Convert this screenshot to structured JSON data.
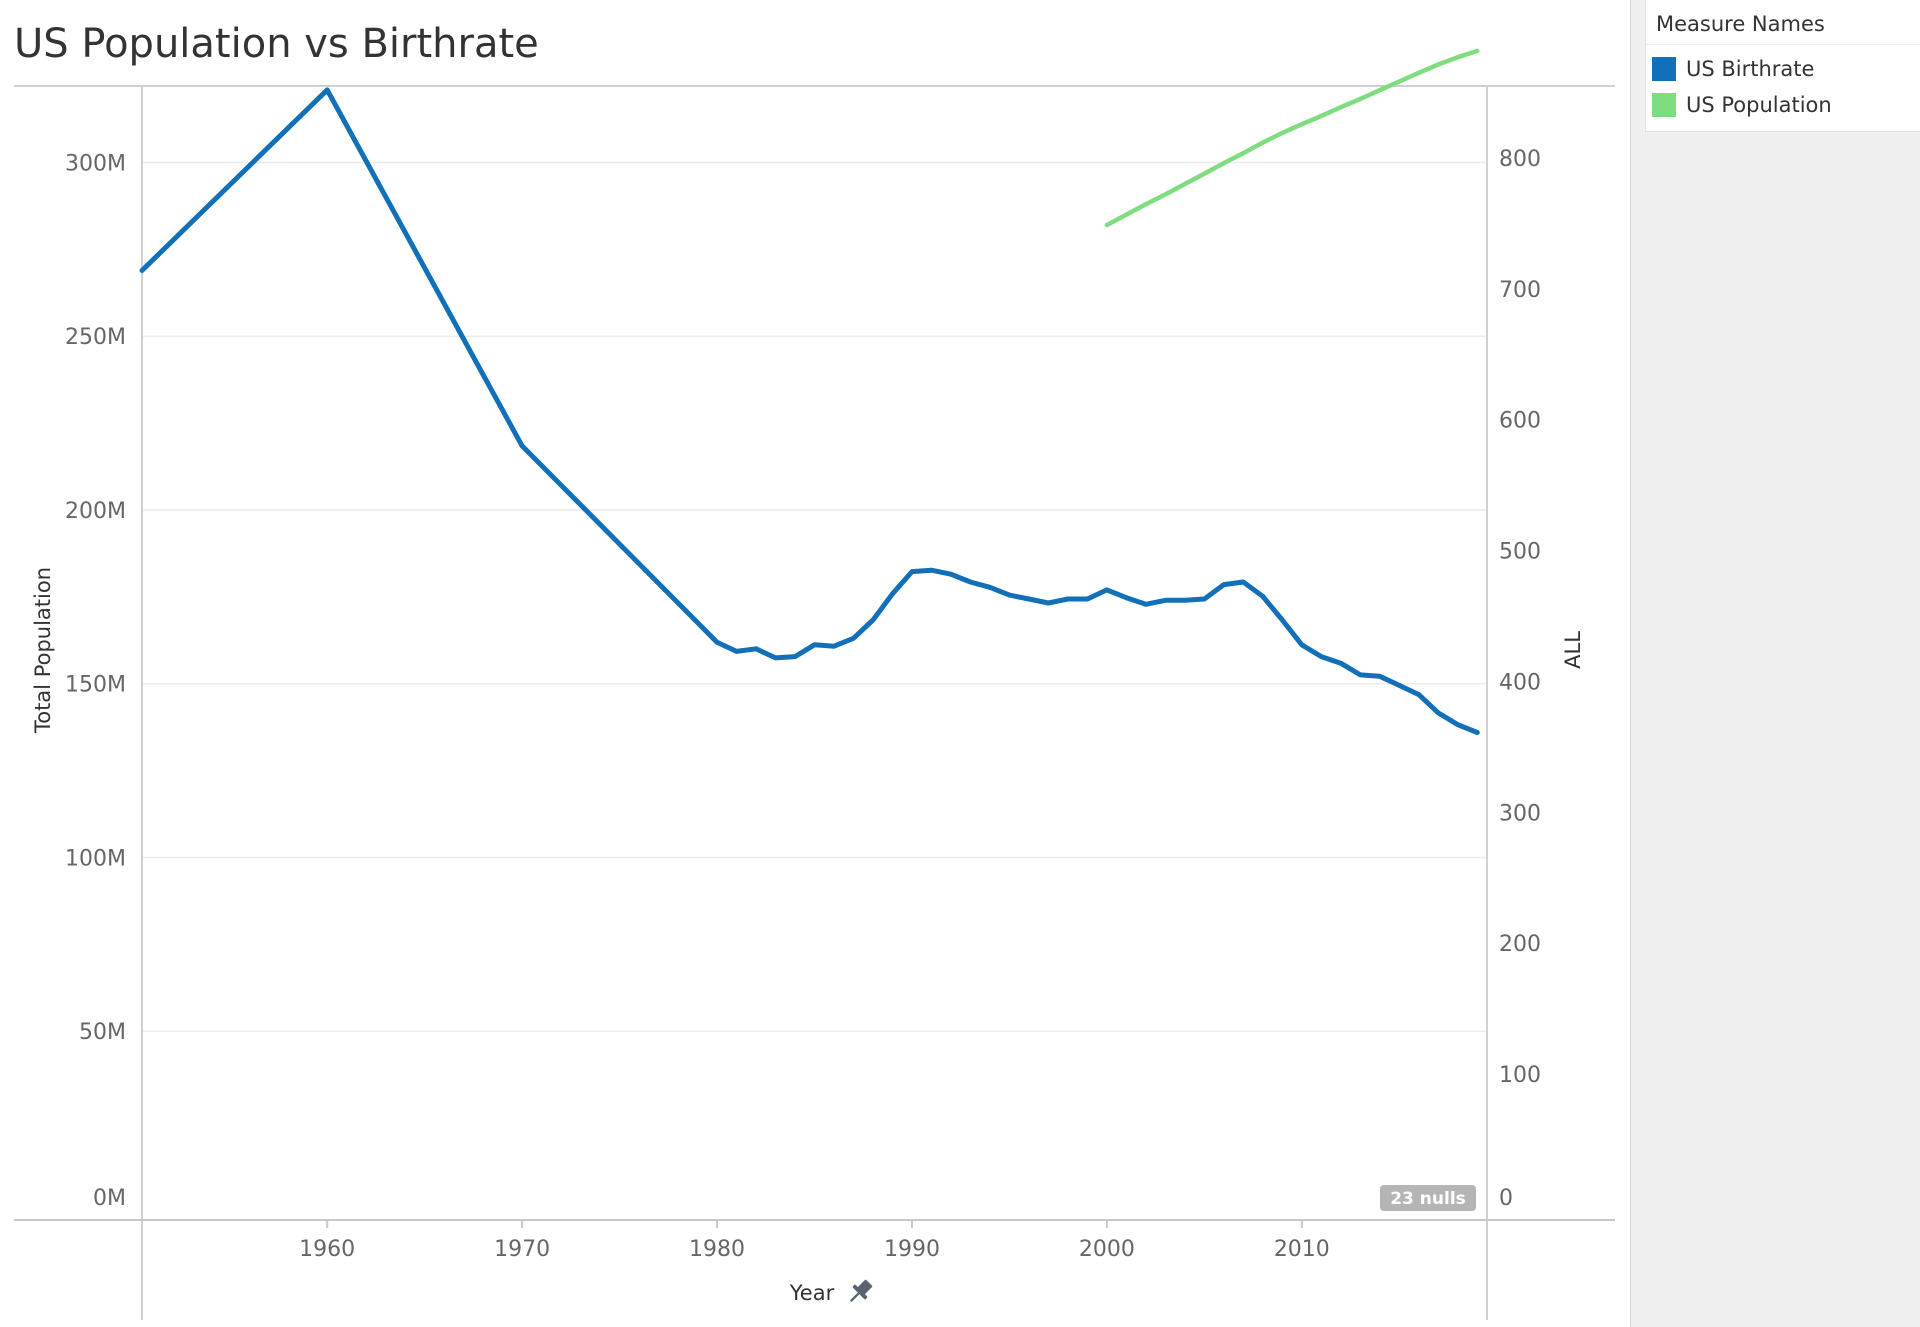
{
  "legend": {
    "title": "Measure Names",
    "items": [
      {
        "label": "US Birthrate",
        "color": "#1170b8"
      },
      {
        "label": "US Population",
        "color": "#7fdd7f"
      }
    ]
  },
  "null_indicator": "23 nulls",
  "chart_data": {
    "type": "line",
    "title": "US Population vs Birthrate",
    "xlabel": "Year",
    "ylabel": "Total Population",
    "y2label": "ALL",
    "xlim": [
      1950.5,
      2019.5
    ],
    "ylim": [
      0,
      322000000
    ],
    "y2lim": [
      0,
      855
    ],
    "x_ticks": [
      1960,
      1970,
      1980,
      1990,
      2000,
      2010
    ],
    "y_ticks": [
      {
        "value": 0,
        "label": "0M"
      },
      {
        "value": 50000000,
        "label": "50M"
      },
      {
        "value": 100000000,
        "label": "100M"
      },
      {
        "value": 150000000,
        "label": "150M"
      },
      {
        "value": 200000000,
        "label": "200M"
      },
      {
        "value": 250000000,
        "label": "250M"
      },
      {
        "value": 300000000,
        "label": "300M"
      }
    ],
    "y2_ticks": [
      {
        "value": 0,
        "label": "0"
      },
      {
        "value": 100,
        "label": "100"
      },
      {
        "value": 200,
        "label": "200"
      },
      {
        "value": 300,
        "label": "300"
      },
      {
        "value": 400,
        "label": "400"
      },
      {
        "value": 500,
        "label": "500"
      },
      {
        "value": 600,
        "label": "600"
      },
      {
        "value": 700,
        "label": "700"
      },
      {
        "value": 800,
        "label": "800"
      }
    ],
    "grid": true,
    "legend_position": "right",
    "series": [
      {
        "name": "US Birthrate",
        "axis": "right",
        "color": "#1170b8",
        "x": [
          1950.5,
          1960,
          1970,
          1980,
          1981,
          1982,
          1983,
          1984,
          1985,
          1986,
          1987,
          1988,
          1989,
          1990,
          1991,
          1992,
          1993,
          1994,
          1995,
          1996,
          1997,
          1998,
          1999,
          2000,
          2001,
          2002,
          2003,
          2004,
          2005,
          2006,
          2007,
          2008,
          2009,
          2010,
          2011,
          2012,
          2013,
          2014,
          2015,
          2016,
          2017,
          2018,
          2019
        ],
        "values": [
          714,
          852,
          580,
          430,
          423,
          425,
          418,
          419,
          428,
          427,
          433,
          447,
          467,
          484,
          485,
          482,
          476,
          472,
          466,
          463,
          460,
          463,
          463,
          470,
          464,
          459,
          462,
          462,
          463,
          474,
          476,
          465,
          447,
          428,
          419,
          414,
          405,
          404,
          397,
          390,
          376,
          367,
          361
        ]
      },
      {
        "name": "US Population",
        "axis": "left",
        "color": "#7fdd7f",
        "x": [
          2000,
          2001,
          2002,
          2003,
          2004,
          2005,
          2006,
          2007,
          2008,
          2009,
          2010,
          2011,
          2012,
          2013,
          2014,
          2015,
          2016,
          2017,
          2018,
          2019
        ],
        "values": [
          282000000,
          285000000,
          288000000,
          290800000,
          293800000,
          296800000,
          299800000,
          302700000,
          305700000,
          308500000,
          311000000,
          313400000,
          315900000,
          318300000,
          320800000,
          323300000,
          325800000,
          328200000,
          330300000,
          332100000
        ]
      }
    ]
  }
}
